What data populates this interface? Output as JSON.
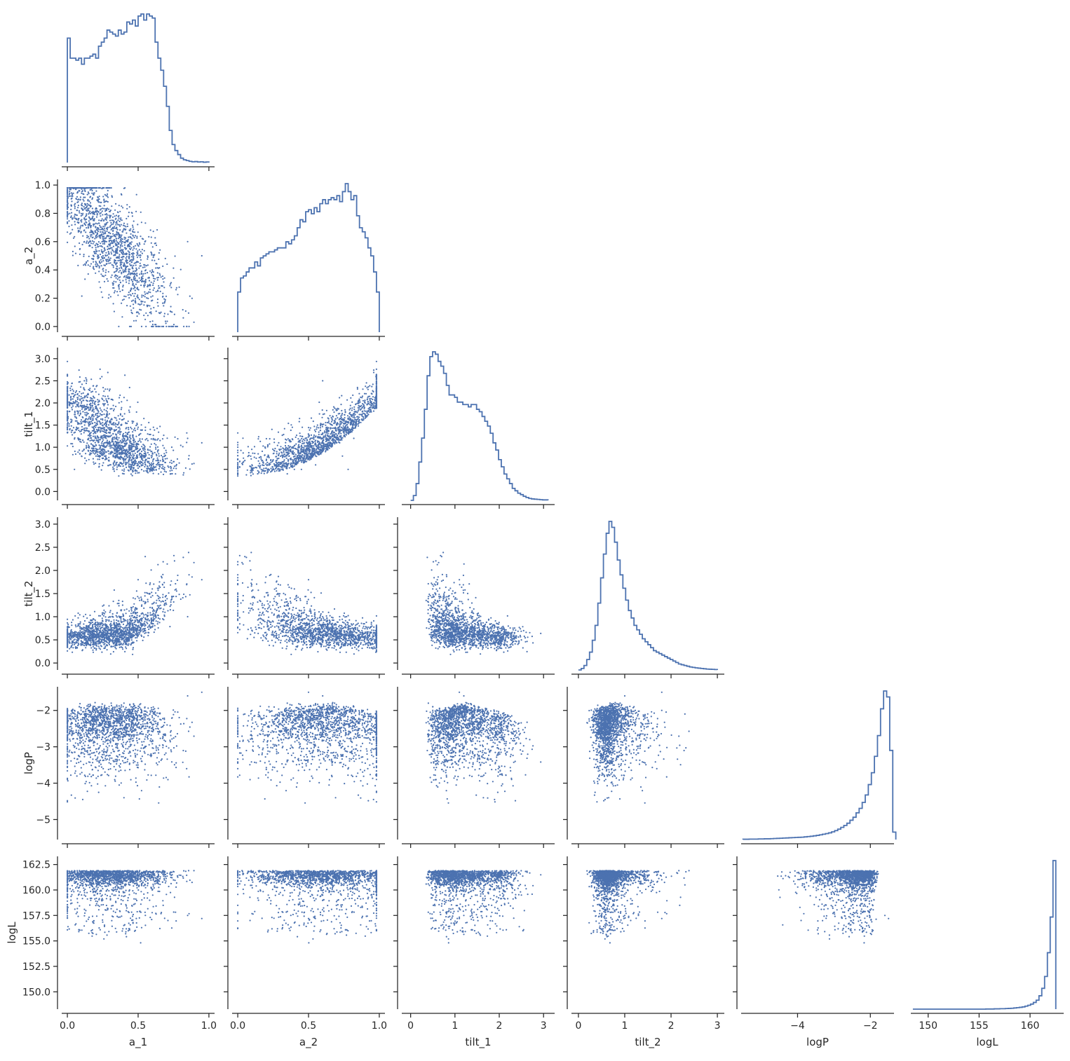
{
  "chart_data": {
    "type": "scatter",
    "layout": "corner-pairplot",
    "marker_color": "#4c72b0",
    "variables": [
      {
        "name": "a_1",
        "range": [
          -0.04,
          1.04
        ],
        "ticks": [
          0.0,
          0.5,
          1.0
        ],
        "tick_labels": [
          "0.0",
          "0.5",
          "1.0"
        ]
      },
      {
        "name": "a_2",
        "range": [
          -0.04,
          1.04
        ],
        "ticks": [
          0.0,
          0.2,
          0.4,
          0.6,
          0.8,
          1.0
        ],
        "tick_labels": [
          "0.0",
          "0.2",
          "0.4",
          "0.6",
          "0.8",
          "1.0"
        ],
        "x_ticks": [
          0.0,
          0.5,
          1.0
        ],
        "x_tick_labels": [
          "0.0",
          "0.5",
          "1.0"
        ]
      },
      {
        "name": "tilt_1",
        "range": [
          -0.2,
          3.25
        ],
        "ticks": [
          0.0,
          0.5,
          1.0,
          1.5,
          2.0,
          2.5,
          3.0
        ],
        "tick_labels": [
          "0.0",
          "0.5",
          "1.0",
          "1.5",
          "2.0",
          "2.5",
          "3.0"
        ],
        "x_ticks": [
          0,
          1,
          2,
          3
        ],
        "x_tick_labels": [
          "0",
          "1",
          "2",
          "3"
        ]
      },
      {
        "name": "tilt_2",
        "range": [
          -0.15,
          3.15
        ],
        "ticks": [
          0.0,
          0.5,
          1.0,
          1.5,
          2.0,
          2.5,
          3.0
        ],
        "tick_labels": [
          "0.0",
          "0.5",
          "1.0",
          "1.5",
          "2.0",
          "2.5",
          "3.0"
        ],
        "x_ticks": [
          0,
          1,
          2,
          3
        ],
        "x_tick_labels": [
          "0",
          "1",
          "2",
          "3"
        ]
      },
      {
        "name": "logP",
        "range": [
          -5.55,
          -1.35
        ],
        "ticks": [
          -5,
          -4,
          -3,
          -2
        ],
        "tick_labels": [
          "−5",
          "−4",
          "−3",
          "−2"
        ],
        "x_ticks": [
          -4,
          -2
        ],
        "x_tick_labels": [
          "−4",
          "−2"
        ]
      },
      {
        "name": "logL",
        "range": [
          148.3,
          163.3
        ],
        "ticks": [
          150.0,
          152.5,
          155.0,
          157.5,
          160.0,
          162.5
        ],
        "tick_labels": [
          "150.0",
          "152.5",
          "155.0",
          "157.5",
          "160.0",
          "162.5"
        ],
        "x_ticks": [
          150,
          155,
          160
        ],
        "x_tick_labels": [
          "150",
          "155",
          "160"
        ]
      }
    ],
    "histograms": [
      {
        "var": "a_1",
        "bin_start": 0.0,
        "bin_width": 0.02,
        "counts": [
          0.62,
          0.52,
          0.52,
          0.51,
          0.52,
          0.49,
          0.52,
          0.52,
          0.53,
          0.54,
          0.52,
          0.58,
          0.6,
          0.62,
          0.66,
          0.65,
          0.64,
          0.63,
          0.66,
          0.64,
          0.65,
          0.7,
          0.69,
          0.71,
          0.68,
          0.73,
          0.74,
          0.71,
          0.74,
          0.73,
          0.72,
          0.6,
          0.52,
          0.46,
          0.38,
          0.28,
          0.16,
          0.09,
          0.06,
          0.04,
          0.022,
          0.014,
          0.01,
          0.006,
          0.004,
          0.005,
          0.003,
          0.004,
          0.002,
          0.003
        ]
      },
      {
        "var": "a_2",
        "bin_start": 0.0,
        "bin_width": 0.02,
        "counts": [
          0.2,
          0.27,
          0.28,
          0.3,
          0.32,
          0.32,
          0.35,
          0.33,
          0.37,
          0.38,
          0.39,
          0.4,
          0.4,
          0.41,
          0.42,
          0.42,
          0.42,
          0.45,
          0.44,
          0.46,
          0.48,
          0.52,
          0.56,
          0.55,
          0.6,
          0.61,
          0.59,
          0.62,
          0.6,
          0.64,
          0.66,
          0.64,
          0.66,
          0.67,
          0.66,
          0.68,
          0.65,
          0.7,
          0.74,
          0.7,
          0.66,
          0.68,
          0.58,
          0.52,
          0.5,
          0.47,
          0.42,
          0.38,
          0.3,
          0.2
        ]
      },
      {
        "var": "tilt_1",
        "bin_start": 0.0,
        "bin_width": 0.062,
        "counts": [
          0.0,
          0.02,
          0.07,
          0.16,
          0.26,
          0.38,
          0.52,
          0.6,
          0.62,
          0.61,
          0.58,
          0.56,
          0.53,
          0.48,
          0.44,
          0.44,
          0.43,
          0.41,
          0.41,
          0.4,
          0.4,
          0.39,
          0.4,
          0.4,
          0.38,
          0.37,
          0.35,
          0.33,
          0.31,
          0.28,
          0.24,
          0.21,
          0.17,
          0.14,
          0.11,
          0.09,
          0.07,
          0.05,
          0.04,
          0.03,
          0.024,
          0.017,
          0.012,
          0.008,
          0.006,
          0.005,
          0.004,
          0.003,
          0.002,
          0.002
        ]
      },
      {
        "var": "tilt_2",
        "bin_start": 0.0,
        "bin_width": 0.06,
        "counts": [
          0.0,
          0.01,
          0.03,
          0.07,
          0.12,
          0.2,
          0.3,
          0.45,
          0.62,
          0.78,
          0.92,
          1.0,
          0.96,
          0.86,
          0.74,
          0.64,
          0.55,
          0.47,
          0.4,
          0.35,
          0.3,
          0.27,
          0.24,
          0.21,
          0.19,
          0.17,
          0.15,
          0.13,
          0.12,
          0.11,
          0.1,
          0.09,
          0.08,
          0.07,
          0.06,
          0.05,
          0.04,
          0.035,
          0.03,
          0.025,
          0.02,
          0.017,
          0.014,
          0.012,
          0.01,
          0.008,
          0.006,
          0.005,
          0.004,
          0.003
        ]
      },
      {
        "var": "logP",
        "bin_start": -5.5,
        "bin_width": 0.084,
        "counts": [
          0.002,
          0.002,
          0.003,
          0.003,
          0.003,
          0.004,
          0.004,
          0.005,
          0.005,
          0.006,
          0.007,
          0.008,
          0.009,
          0.01,
          0.011,
          0.012,
          0.013,
          0.014,
          0.015,
          0.016,
          0.018,
          0.02,
          0.022,
          0.025,
          0.028,
          0.032,
          0.036,
          0.04,
          0.045,
          0.052,
          0.06,
          0.07,
          0.082,
          0.095,
          0.11,
          0.13,
          0.15,
          0.18,
          0.21,
          0.25,
          0.3,
          0.37,
          0.45,
          0.56,
          0.7,
          0.88,
          1.0,
          0.96,
          0.6,
          0.05
        ]
      },
      {
        "var": "logL",
        "bin_start": 148.5,
        "bin_width": 0.275,
        "counts": [
          0,
          0,
          0,
          0,
          0,
          0,
          0,
          0,
          0,
          0,
          0,
          0,
          0,
          0,
          0,
          0,
          0,
          0,
          0,
          0,
          0,
          0,
          0,
          0,
          0,
          0,
          0.001,
          0.001,
          0.001,
          0.002,
          0.002,
          0.003,
          0.003,
          0.004,
          0.005,
          0.006,
          0.008,
          0.01,
          0.012,
          0.015,
          0.02,
          0.026,
          0.034,
          0.045,
          0.06,
          0.09,
          0.14,
          0.22,
          0.38,
          0.62,
          1.0
        ]
      }
    ],
    "scatter_pairs": [
      {
        "x": "a_1",
        "y": "a_2"
      },
      {
        "x": "a_1",
        "y": "tilt_1"
      },
      {
        "x": "a_2",
        "y": "tilt_1"
      },
      {
        "x": "a_1",
        "y": "tilt_2"
      },
      {
        "x": "a_2",
        "y": "tilt_2"
      },
      {
        "x": "tilt_1",
        "y": "tilt_2"
      },
      {
        "x": "a_1",
        "y": "logP"
      },
      {
        "x": "a_2",
        "y": "logP"
      },
      {
        "x": "tilt_1",
        "y": "logP"
      },
      {
        "x": "tilt_2",
        "y": "logP"
      },
      {
        "x": "a_1",
        "y": "logL"
      },
      {
        "x": "a_2",
        "y": "logL"
      },
      {
        "x": "tilt_1",
        "y": "logL"
      },
      {
        "x": "tilt_2",
        "y": "logL"
      },
      {
        "x": "logP",
        "y": "logL"
      }
    ],
    "posterior_samples": [
      [
        0.05,
        0.78,
        0.5,
        0.6,
        -2.0,
        161.7
      ],
      [
        0.1,
        0.74,
        0.8,
        0.6,
        -2.1,
        161.5
      ],
      [
        0.15,
        0.82,
        1.2,
        0.7,
        -1.9,
        161.8
      ],
      [
        0.2,
        0.7,
        1.5,
        0.5,
        -2.3,
        161.2
      ],
      [
        0.25,
        0.62,
        0.9,
        0.6,
        -2.2,
        161.0
      ],
      [
        0.3,
        0.55,
        0.6,
        0.7,
        -2.0,
        161.6
      ],
      [
        0.35,
        0.45,
        0.5,
        0.8,
        -1.9,
        161.7
      ],
      [
        0.4,
        0.35,
        0.4,
        0.9,
        -1.8,
        161.8
      ],
      [
        0.45,
        0.22,
        0.5,
        1.2,
        -1.9,
        161.5
      ],
      [
        0.5,
        0.1,
        0.6,
        1.8,
        -2.0,
        161.0
      ],
      [
        0.55,
        0.05,
        0.7,
        2.3,
        -2.1,
        160.5
      ],
      [
        0.08,
        0.9,
        2.0,
        0.4,
        -2.6,
        160.2
      ],
      [
        0.12,
        0.6,
        2.5,
        0.5,
        -3.2,
        159.5
      ],
      [
        0.22,
        0.88,
        1.8,
        0.6,
        -2.4,
        160.8
      ],
      [
        0.38,
        0.72,
        1.1,
        1.0,
        -2.2,
        161.3
      ],
      [
        0.6,
        0.4,
        0.5,
        1.6,
        -2.5,
        160.0
      ],
      [
        0.85,
        0.6,
        1.2,
        1.0,
        -1.6,
        157.5
      ],
      [
        0.95,
        0.5,
        1.1,
        1.8,
        -1.5,
        157.2
      ]
    ]
  }
}
